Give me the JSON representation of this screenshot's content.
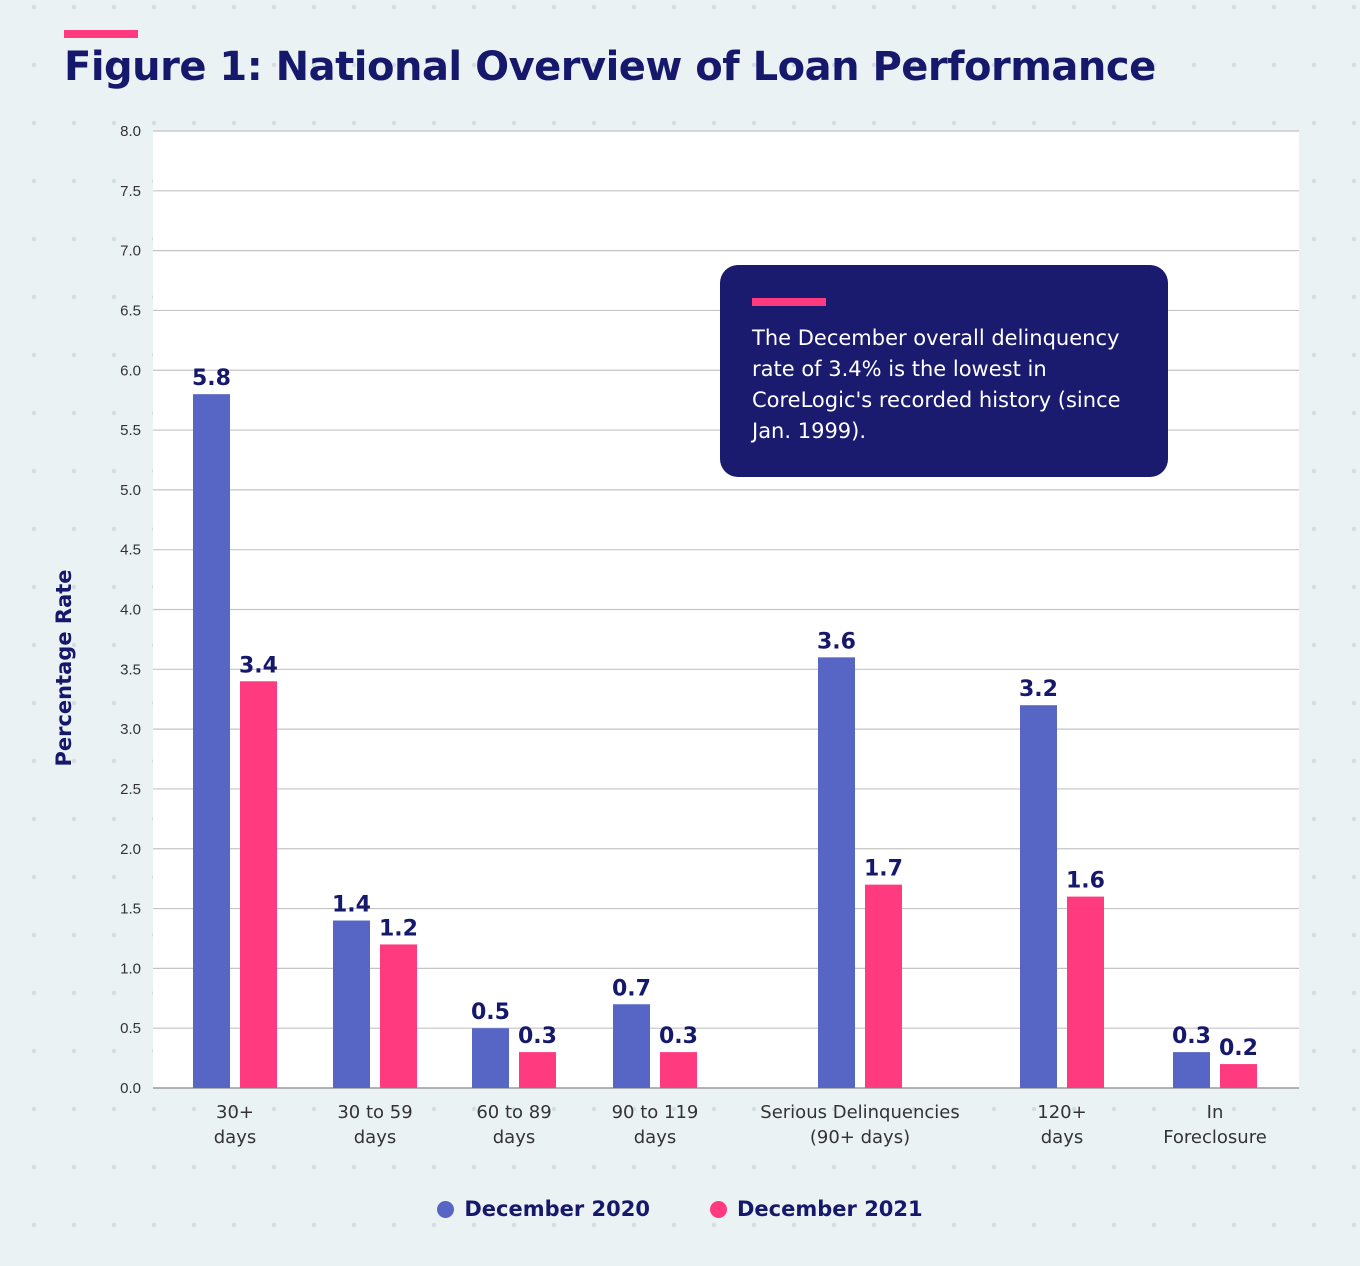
{
  "header": {
    "title": "Figure 1: National Overview of Loan Performance"
  },
  "callout": {
    "text": "The December overall delinquency rate of 3.4% is the lowest in CoreLogic's recorded history (since Jan. 1999)."
  },
  "colors": {
    "accent": "#ff3a7f",
    "navy": "#16186b",
    "series_2020": "#5766c4",
    "series_2021": "#ff3a7f"
  },
  "chart_data": {
    "type": "bar",
    "title": "Figure 1: National Overview of Loan Performance",
    "xlabel": "",
    "ylabel": "Percentage Rate",
    "ylim": [
      0,
      8.0
    ],
    "yticks": [
      "0.0",
      "0.5",
      "1.0",
      "1.5",
      "2.0",
      "2.5",
      "3.0",
      "3.5",
      "4.0",
      "4.5",
      "5.0",
      "5.5",
      "6.0",
      "6.5",
      "7.0",
      "7.5",
      "8.0"
    ],
    "grid": true,
    "legend_position": "bottom-center",
    "categories": [
      [
        "30+",
        "days"
      ],
      [
        "30 to 59",
        "days"
      ],
      [
        "60 to 89",
        "days"
      ],
      [
        "90 to 119",
        "days"
      ],
      [
        "Serious Delinquencies",
        "(90+ days)"
      ],
      [
        "120+",
        "days"
      ],
      [
        "In",
        "Foreclosure"
      ]
    ],
    "series": [
      {
        "name": "December 2020",
        "color": "#5766c4",
        "values": [
          5.8,
          1.4,
          0.5,
          0.7,
          3.6,
          3.2,
          0.3
        ]
      },
      {
        "name": "December 2021",
        "color": "#ff3a7f",
        "values": [
          3.4,
          1.2,
          0.3,
          0.3,
          1.7,
          1.6,
          0.2
        ]
      }
    ]
  }
}
